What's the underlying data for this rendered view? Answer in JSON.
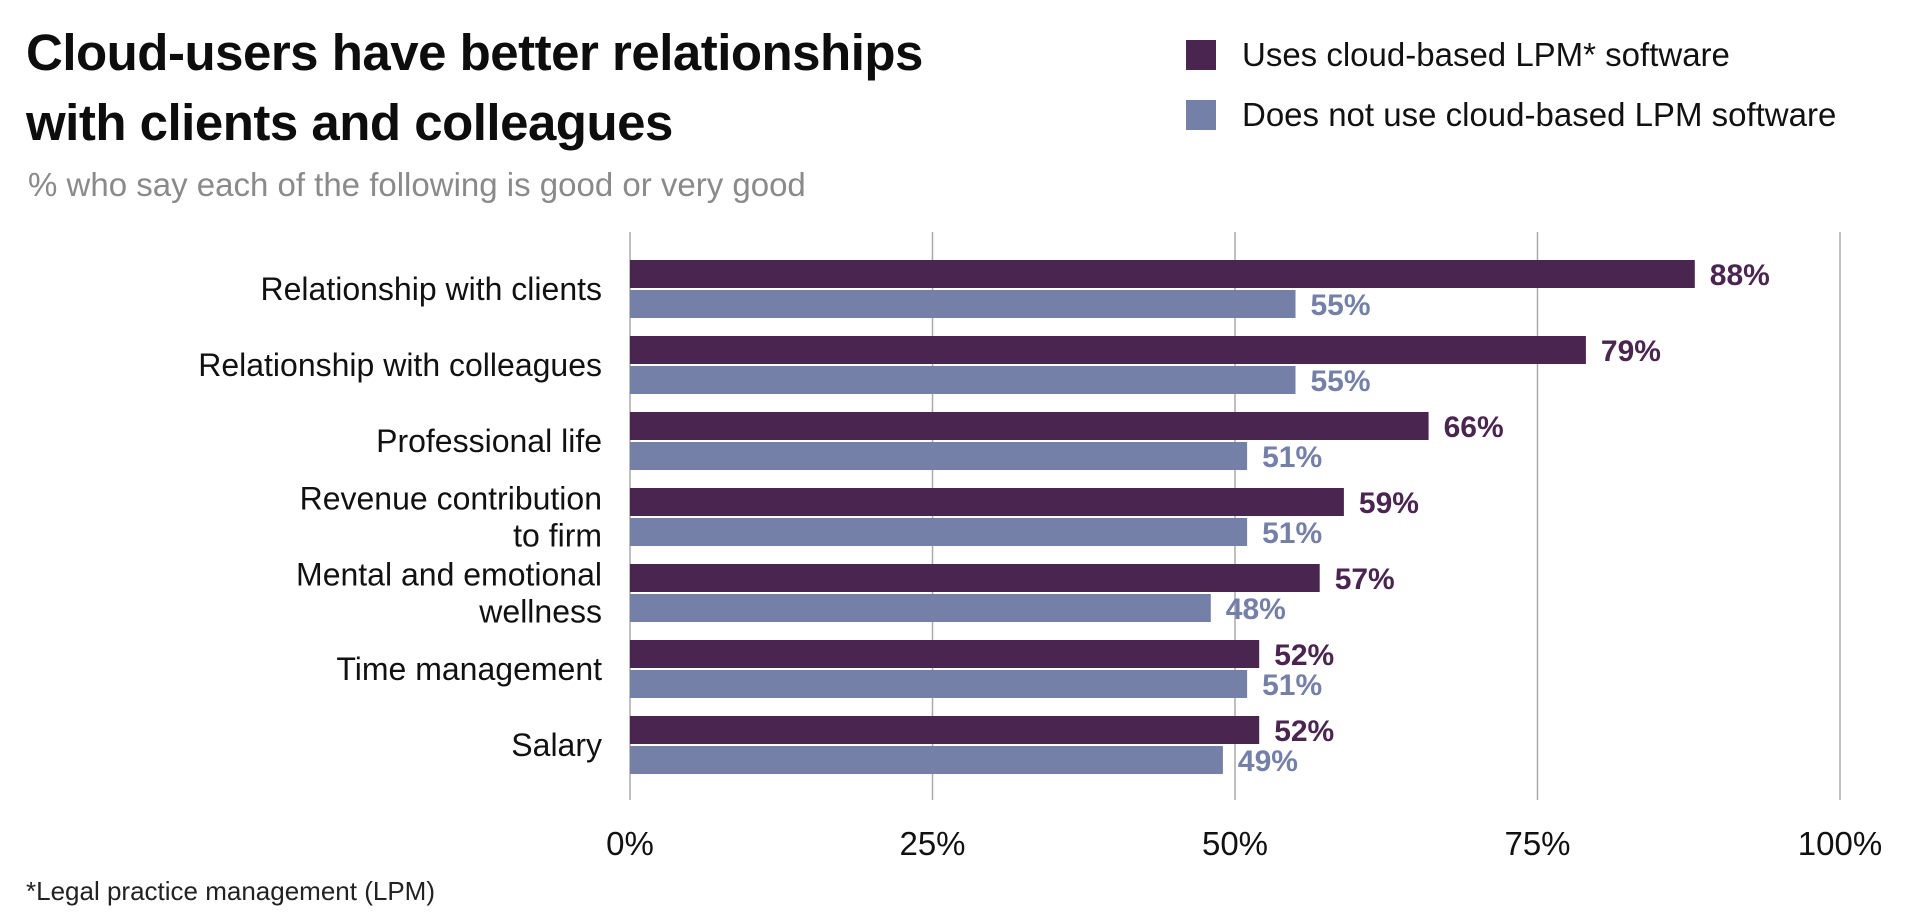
{
  "title": "Cloud-users have better relationships with clients and colleagues",
  "subtitle": "% who say each of the following is good or very good",
  "footnote": "*Legal practice management (LPM)",
  "colors": {
    "cloud": "#4a2550",
    "no_cloud": "#7580a8",
    "gridline": "#aaaaaa"
  },
  "legend": [
    {
      "label": "Uses cloud-based LPM* software",
      "color": "#4a2550"
    },
    {
      "label": "Does not use cloud-based LPM software",
      "color": "#7580a8"
    }
  ],
  "chart_data": {
    "type": "bar",
    "orientation": "horizontal",
    "title": "Cloud-users have better relationships with clients and colleagues",
    "subtitle": "% who say each of the following is good or very good",
    "categories": [
      [
        "Relationship with clients"
      ],
      [
        "Relationship with colleagues"
      ],
      [
        "Professional life"
      ],
      [
        "Revenue contribution",
        "to firm"
      ],
      [
        "Mental and emotional",
        "wellness"
      ],
      [
        "Time management"
      ],
      [
        "Salary"
      ]
    ],
    "series": [
      {
        "name": "Uses cloud-based LPM* software",
        "values": [
          88,
          79,
          66,
          59,
          57,
          52,
          52
        ]
      },
      {
        "name": "Does not use cloud-based LPM software",
        "values": [
          55,
          55,
          51,
          51,
          48,
          51,
          49
        ]
      }
    ],
    "xticks": [
      "0%",
      "25%",
      "50%",
      "75%",
      "100%"
    ],
    "xlim": [
      0,
      100
    ],
    "value_suffix": "%",
    "grid": true,
    "legend_position": "top-right"
  }
}
